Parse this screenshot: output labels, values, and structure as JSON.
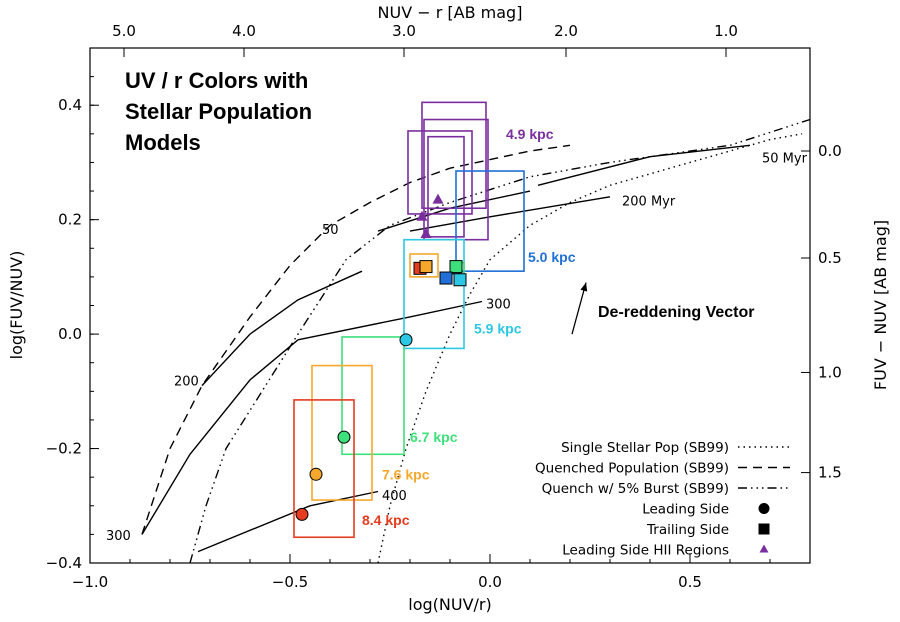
{
  "chart_data": {
    "type": "scatter",
    "title_lines": [
      "UV / r Colors with",
      "Stellar Population",
      "Models"
    ],
    "xlabel": "log(NUV/r)",
    "ylabel": "log(FUV/NUV)",
    "top_xlabel": "NUV − r [AB mag]",
    "right_ylabel": "FUV − NUV [AB mag]",
    "xlim": [
      -1.0,
      0.8
    ],
    "ylim": [
      -0.4,
      0.5
    ],
    "x_ticks": [
      {
        "v": -1.0,
        "label": "−1.0"
      },
      {
        "v": -0.5,
        "label": "−0.5"
      },
      {
        "v": 0.0,
        "label": "0.0"
      },
      {
        "v": 0.5,
        "label": "0.5"
      }
    ],
    "y_ticks": [
      {
        "v": -0.4,
        "label": "−0.4"
      },
      {
        "v": -0.2,
        "label": "−0.2"
      },
      {
        "v": 0.0,
        "label": "0.0"
      },
      {
        "v": 0.2,
        "label": "0.2"
      },
      {
        "v": 0.4,
        "label": "0.4"
      }
    ],
    "top_ticks": [
      {
        "label": "5.0",
        "x": -0.915
      },
      {
        "label": "4.0",
        "x": -0.615
      },
      {
        "label": "3.0",
        "x": -0.215
      },
      {
        "label": "2.0",
        "x": 0.19
      },
      {
        "label": "1.0",
        "x": 0.59
      }
    ],
    "right_ticks": [
      {
        "label": "0.0",
        "y": 0.32
      },
      {
        "label": "0.5",
        "y": 0.133
      },
      {
        "label": "1.0",
        "y": -0.067
      },
      {
        "label": "1.5",
        "y": -0.242
      }
    ],
    "curves": [
      {
        "name": "Single Stellar Pop (SB99)",
        "style": "dotted",
        "points": [
          [
            -0.28,
            -0.4
          ],
          [
            -0.25,
            -0.3
          ],
          [
            -0.21,
            -0.2
          ],
          [
            -0.16,
            -0.1
          ],
          [
            -0.1,
            0.0
          ],
          [
            -0.05,
            0.07
          ],
          [
            0.0,
            0.13
          ],
          [
            0.1,
            0.19
          ],
          [
            0.2,
            0.23
          ],
          [
            0.3,
            0.26
          ],
          [
            0.4,
            0.28
          ],
          [
            0.5,
            0.3
          ],
          [
            0.6,
            0.32
          ],
          [
            0.7,
            0.34
          ],
          [
            0.78,
            0.35
          ]
        ]
      },
      {
        "name": "Quenched Population (SB99)",
        "style": "dashed",
        "points": [
          [
            -0.87,
            -0.35
          ],
          [
            -0.8,
            -0.2
          ],
          [
            -0.72,
            -0.09
          ],
          [
            -0.6,
            0.03
          ],
          [
            -0.5,
            0.12
          ],
          [
            -0.4,
            0.19
          ],
          [
            -0.3,
            0.23
          ],
          [
            -0.2,
            0.265
          ],
          [
            -0.1,
            0.29
          ],
          [
            0.0,
            0.305
          ],
          [
            0.1,
            0.32
          ],
          [
            0.2,
            0.33
          ]
        ]
      },
      {
        "name": "Quench w/ 5% Burst (SB99)",
        "style": "dashdot",
        "points": [
          [
            -0.75,
            -0.4
          ],
          [
            -0.71,
            -0.3
          ],
          [
            -0.66,
            -0.2
          ],
          [
            -0.57,
            -0.1
          ],
          [
            -0.48,
            0.0
          ],
          [
            -0.36,
            0.13
          ],
          [
            -0.25,
            0.19
          ],
          [
            -0.1,
            0.23
          ],
          [
            0.1,
            0.275
          ],
          [
            0.3,
            0.3
          ],
          [
            0.45,
            0.315
          ],
          [
            0.6,
            0.33
          ],
          [
            0.8,
            0.375
          ]
        ]
      }
    ],
    "isochrones": [
      {
        "label": "50 Myr",
        "points": [
          [
            0.12,
            0.26
          ],
          [
            0.4,
            0.31
          ],
          [
            0.65,
            0.33
          ]
        ],
        "label_pos": [
          0.68,
          0.3
        ]
      },
      {
        "label": "50",
        "points": [
          [
            -0.28,
            0.18
          ],
          [
            -0.1,
            0.22
          ],
          [
            0.1,
            0.25
          ]
        ],
        "label_pos": [
          -0.42,
          0.175
        ]
      },
      {
        "label": "200 Myr",
        "points": [
          [
            -0.2,
            0.18
          ],
          [
            0.0,
            0.205
          ],
          [
            0.3,
            0.24
          ]
        ],
        "label_pos": [
          0.33,
          0.225
        ]
      },
      {
        "label": "200",
        "points": [
          [
            -0.72,
            -0.09
          ],
          [
            -0.6,
            0.0
          ],
          [
            -0.48,
            0.06
          ],
          [
            -0.32,
            0.11
          ]
        ],
        "label_pos": [
          -0.79,
          -0.09
        ]
      },
      {
        "label": "300",
        "points": [
          [
            -0.48,
            -0.01
          ],
          [
            -0.2,
            0.03
          ],
          [
            -0.02,
            0.057
          ]
        ],
        "label_pos": [
          -0.01,
          0.045
        ]
      },
      {
        "label": "300",
        "points": [
          [
            -0.87,
            -0.35
          ],
          [
            -0.75,
            -0.21
          ],
          [
            -0.6,
            -0.08
          ],
          [
            -0.48,
            -0.01
          ]
        ],
        "label_pos": [
          -0.96,
          -0.36
        ]
      },
      {
        "label": "400",
        "points": [
          [
            -0.73,
            -0.38
          ],
          [
            -0.45,
            -0.3
          ],
          [
            -0.28,
            -0.275
          ]
        ],
        "label_pos": [
          -0.27,
          -0.29
        ]
      }
    ],
    "boxes": [
      {
        "label": "4.9 kpc",
        "color": "#7a2e9e",
        "x0": -0.205,
        "x1": -0.045,
        "y0": 0.21,
        "y1": 0.355,
        "label_pos": [
          0.04,
          0.35
        ]
      },
      {
        "label": "",
        "color": "#7a2e9e",
        "x0": -0.17,
        "x1": -0.01,
        "y0": 0.22,
        "y1": 0.405
      },
      {
        "label": "",
        "color": "#7a2e9e",
        "x0": -0.155,
        "x1": -0.065,
        "y0": 0.17,
        "y1": 0.345
      },
      {
        "label": "",
        "color": "#7a2e9e",
        "x0": -0.165,
        "x1": -0.005,
        "y0": 0.165,
        "y1": 0.375
      },
      {
        "label": "5.0 kpc",
        "color": "#1f6fd6",
        "x0": -0.085,
        "x1": 0.085,
        "y0": 0.11,
        "y1": 0.285,
        "label_pos": [
          0.095,
          0.135
        ]
      },
      {
        "label": "5.9 kpc",
        "color": "#2cc7e4",
        "x0": -0.215,
        "x1": -0.065,
        "y0": -0.025,
        "y1": 0.165,
        "label_pos": [
          -0.04,
          0.01
        ]
      },
      {
        "label": "6.7 kpc",
        "color": "#3de07a",
        "x0": -0.37,
        "x1": -0.215,
        "y0": -0.21,
        "y1": -0.005,
        "label_pos": [
          -0.2,
          -0.18
        ]
      },
      {
        "label": "7.6 kpc",
        "color": "#f5a82c",
        "x0": -0.445,
        "x1": -0.295,
        "y0": -0.29,
        "y1": -0.055,
        "label_pos": [
          -0.27,
          -0.245
        ]
      },
      {
        "label": "8.4 kpc",
        "color": "#e53b1f",
        "x0": -0.49,
        "x1": -0.34,
        "y0": -0.355,
        "y1": -0.115,
        "label_pos": [
          -0.32,
          -0.325
        ]
      },
      {
        "label": "",
        "color": "#f5a82c",
        "x0": -0.2,
        "x1": -0.13,
        "y0": 0.1,
        "y1": 0.14
      },
      {
        "label": "",
        "color": "#3de07a",
        "x0": -0.095,
        "x1": -0.065,
        "y0": 0.105,
        "y1": 0.125
      }
    ],
    "points": [
      {
        "shape": "circle",
        "color": "#e53b1f",
        "x": -0.47,
        "y": -0.315
      },
      {
        "shape": "circle",
        "color": "#f5a82c",
        "x": -0.435,
        "y": -0.245
      },
      {
        "shape": "circle",
        "color": "#3de07a",
        "x": -0.365,
        "y": -0.18
      },
      {
        "shape": "circle",
        "color": "#2cc7e4",
        "x": -0.21,
        "y": -0.01
      },
      {
        "shape": "circle",
        "color": "#1f6fd6",
        "x": -0.085,
        "y": 0.115
      },
      {
        "shape": "square",
        "color": "#e53b1f",
        "x": -0.175,
        "y": 0.115
      },
      {
        "shape": "square",
        "color": "#f5a82c",
        "x": -0.16,
        "y": 0.118
      },
      {
        "shape": "square",
        "color": "#3de07a",
        "x": -0.085,
        "y": 0.118
      },
      {
        "shape": "square",
        "color": "#1f6fd6",
        "x": -0.11,
        "y": 0.098
      },
      {
        "shape": "square",
        "color": "#2cc7e4",
        "x": -0.075,
        "y": 0.095
      },
      {
        "shape": "triangle",
        "color": "#7a2e9e",
        "x": -0.13,
        "y": 0.235
      },
      {
        "shape": "triangle",
        "color": "#7a2e9e",
        "x": -0.17,
        "y": 0.205
      },
      {
        "shape": "triangle",
        "color": "#7a2e9e",
        "x": -0.16,
        "y": 0.175
      }
    ],
    "legend": [
      {
        "label": "Single Stellar Pop (SB99)",
        "symbol": "dotted"
      },
      {
        "label": "Quenched Population (SB99)",
        "symbol": "dashed"
      },
      {
        "label": "Quench w/ 5% Burst (SB99)",
        "symbol": "dashdot"
      },
      {
        "label": "Leading Side",
        "symbol": "circle"
      },
      {
        "label": "Trailing Side",
        "symbol": "square"
      },
      {
        "label": "Leading Side HII Regions",
        "symbol": "triangle"
      }
    ],
    "vector": {
      "label": "De-reddening Vector",
      "from": [
        0.205,
        0.0
      ],
      "to": [
        0.24,
        0.09
      ],
      "label_pos": [
        0.27,
        0.03
      ]
    }
  }
}
